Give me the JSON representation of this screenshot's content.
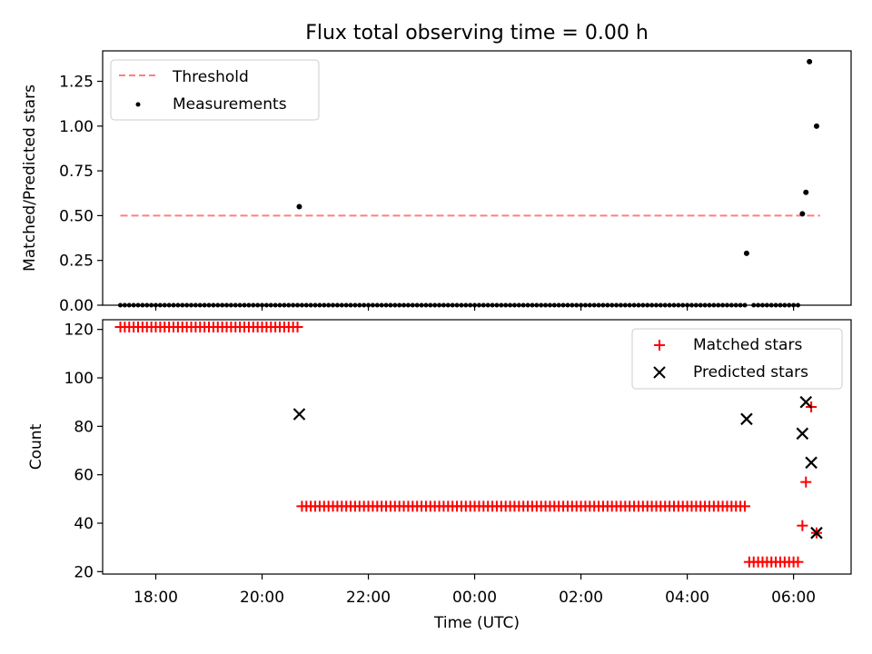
{
  "chart_data": [
    {
      "type": "scatter",
      "title": "Flux total observing time = 0.00 h",
      "xlabel": "",
      "ylabel": "Matched/Predicted stars",
      "xlim": [
        "17:00",
        "07:05"
      ],
      "ylim": [
        0,
        1.42
      ],
      "yticks": [
        0.0,
        0.25,
        0.5,
        0.75,
        1.0,
        1.25
      ],
      "ytick_labels": [
        "0.00",
        "0.25",
        "0.50",
        "0.75",
        "1.00",
        "1.25"
      ],
      "legend_position": "top-left",
      "series": [
        {
          "name": "Threshold",
          "kind": "dashed-line",
          "color": "#ff7f7f",
          "x": [
            "17:20",
            "06:30"
          ],
          "y": [
            0.5,
            0.5
          ]
        },
        {
          "name": "Measurements",
          "kind": "dots",
          "color": "#000000",
          "zero_runs": [
            {
              "start": "17:20",
              "end": "20:40",
              "step_min": 5,
              "y": 0
            },
            {
              "start": "20:45",
              "end": "05:05",
              "step_min": 5,
              "y": 0
            },
            {
              "start": "05:15",
              "end": "06:05",
              "step_min": 5,
              "y": 0
            }
          ],
          "points": [
            {
              "x": "20:42",
              "y": 0.55
            },
            {
              "x": "05:07",
              "y": 0.29
            },
            {
              "x": "06:10",
              "y": 0.51
            },
            {
              "x": "06:14",
              "y": 0.63
            },
            {
              "x": "06:18",
              "y": 1.36
            },
            {
              "x": "06:26",
              "y": 1.0
            }
          ]
        }
      ]
    },
    {
      "type": "scatter",
      "title": "",
      "xlabel": "Time (UTC)",
      "ylabel": "Count",
      "xlim": [
        "17:00",
        "07:05"
      ],
      "ylim": [
        19,
        124
      ],
      "yticks": [
        20,
        40,
        60,
        80,
        100,
        120
      ],
      "ytick_labels": [
        "20",
        "40",
        "60",
        "80",
        "100",
        "120"
      ],
      "xticks": [
        "18:00",
        "20:00",
        "22:00",
        "00:00",
        "02:00",
        "04:00",
        "06:00"
      ],
      "legend_position": "top-right",
      "series": [
        {
          "name": "Matched stars",
          "marker": "plus",
          "color": "#ff0000",
          "runs": [
            {
              "start": "17:20",
              "end": "20:40",
              "step_min": 5,
              "y": 121
            },
            {
              "start": "20:45",
              "end": "05:05",
              "step_min": 5,
              "y": 47
            },
            {
              "start": "05:10",
              "end": "06:05",
              "step_min": 5,
              "y": 24
            }
          ],
          "points": [
            {
              "x": "06:10",
              "y": 39
            },
            {
              "x": "06:14",
              "y": 57
            },
            {
              "x": "06:20",
              "y": 88
            },
            {
              "x": "06:26",
              "y": 36
            }
          ]
        },
        {
          "name": "Predicted stars",
          "marker": "x",
          "color": "#000000",
          "points": [
            {
              "x": "20:42",
              "y": 85
            },
            {
              "x": "05:07",
              "y": 83
            },
            {
              "x": "06:10",
              "y": 77
            },
            {
              "x": "06:14",
              "y": 90
            },
            {
              "x": "06:20",
              "y": 65
            },
            {
              "x": "06:26",
              "y": 36
            }
          ]
        }
      ]
    }
  ]
}
